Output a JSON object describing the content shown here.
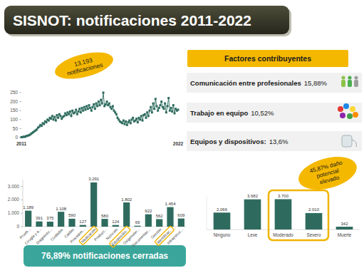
{
  "header": {
    "title": "SISNOT: notificaciones 2011-2022"
  },
  "total_badge": [
    "13.193",
    "notificaciones"
  ],
  "factors": {
    "title": "Factores contribuyentes",
    "items": [
      {
        "label": "Comunicación entre profesionales",
        "value": "15,88%"
      },
      {
        "label": "Trabajo en equipo",
        "value": "10,52%"
      },
      {
        "label": "Equipos y dispositivos:",
        "value": "13,6%"
      }
    ]
  },
  "closed_banner": "76,89% notificaciones cerradas",
  "damage_badge": [
    "45,87% daño",
    "potencial",
    "elevado"
  ],
  "chart_data": [
    {
      "type": "line",
      "categories": [
        "2011",
        null,
        null,
        null,
        null,
        null,
        null,
        null,
        null,
        null,
        null,
        null,
        null,
        null,
        null,
        null,
        null,
        null,
        null,
        null,
        null,
        null,
        null,
        null,
        null,
        null,
        null,
        null,
        null,
        null,
        null,
        null,
        null,
        null,
        null,
        null,
        null,
        null,
        null,
        null,
        null,
        null,
        null,
        null,
        null,
        null,
        null,
        null,
        null,
        null,
        null,
        null,
        null,
        null,
        null,
        null,
        null,
        null,
        null,
        null,
        null,
        null,
        null,
        null,
        null,
        null,
        null,
        null,
        null,
        null,
        null,
        null,
        null,
        null,
        null,
        null,
        null,
        null,
        null,
        null,
        null,
        null,
        null,
        null,
        null,
        null,
        null,
        null,
        null,
        null,
        null,
        null,
        null,
        null,
        null,
        null,
        null,
        null,
        null,
        null,
        null,
        null,
        null,
        null,
        null,
        null,
        null,
        null,
        null,
        null,
        null,
        null,
        null,
        null,
        null,
        null,
        null,
        null,
        null,
        null,
        null,
        null,
        null,
        null,
        null,
        null,
        null,
        null,
        null,
        null,
        null,
        null,
        "2022"
      ],
      "values": [
        2,
        3,
        5,
        4,
        8,
        10,
        12,
        15,
        20,
        25,
        30,
        35,
        40,
        45,
        55,
        60,
        70,
        65,
        80,
        75,
        90,
        85,
        100,
        95,
        110,
        105,
        120,
        100,
        115,
        95,
        125,
        110,
        130,
        120,
        105,
        115,
        120,
        135,
        125,
        140,
        130,
        145,
        120,
        150,
        135,
        140,
        155,
        130,
        145,
        160,
        140,
        165,
        150,
        170,
        155,
        175,
        160,
        180,
        165,
        150,
        170,
        185,
        160,
        190,
        175,
        200,
        180,
        210,
        190,
        250,
        175,
        185,
        200,
        180,
        190,
        170,
        160,
        175,
        150,
        140,
        130,
        110,
        100,
        90,
        85,
        80,
        95,
        75,
        90,
        70,
        85,
        95,
        80,
        100,
        110,
        90,
        95,
        105,
        85,
        110,
        100,
        120,
        95,
        125,
        130,
        110,
        140,
        120,
        150,
        170,
        140,
        190,
        160,
        215,
        175,
        150,
        165,
        180,
        200,
        170,
        160,
        190,
        140,
        175,
        220,
        150,
        165,
        145,
        180,
        135,
        160,
        150,
        155
      ],
      "color": "#2e6b5e",
      "marker": "square",
      "ylim": [
        0,
        250
      ],
      "yticks": [
        0,
        50,
        100,
        150,
        200,
        250
      ],
      "grid": false
    },
    {
      "type": "bar",
      "categories": [
        "Prueb...",
        "Cirugía y a...",
        "Diagnóstic...",
        "Cuidados",
        "Caídas",
        "Procedim...",
        "Medicación",
        "Product...",
        "Nutrición",
        "Equipos/dis...",
        "Oxigenoter...",
        "Documentac...",
        "Gestión",
        "Identificac...",
        "Infraestruc..."
      ],
      "values": [
        1189,
        391,
        375,
        1108,
        590,
        127,
        3291,
        580,
        124,
        1802,
        69,
        922,
        562,
        1454,
        609
      ],
      "value_labels": [
        "1.189",
        "391",
        "375",
        "1.108",
        "590",
        "127",
        "3.291",
        "580",
        "124",
        "1.802",
        "69",
        "922",
        "562",
        "1.454",
        "609"
      ],
      "color": "#2e6b5e",
      "ylim": [
        0,
        3500
      ],
      "yticks": [
        0,
        {
          "value": 1000,
          "label": "1.000"
        },
        {
          "value": 2000,
          "label": "2.000"
        },
        {
          "value": 3000,
          "label": "3.000"
        }
      ],
      "data_labels": true,
      "grid": false
    },
    {
      "type": "bar",
      "categories": [
        "Ninguno",
        "Leve",
        "Moderado",
        "Severo",
        "Muerte"
      ],
      "values": [
        2066,
        3682,
        3700,
        2010,
        342
      ],
      "value_labels": [
        "2.066",
        "3.682",
        "3.700",
        "2.010",
        "342"
      ],
      "color": "#2e6b5e",
      "ylim": [
        0,
        4000
      ],
      "data_labels": true,
      "tick_labels": false,
      "grid": false
    }
  ]
}
